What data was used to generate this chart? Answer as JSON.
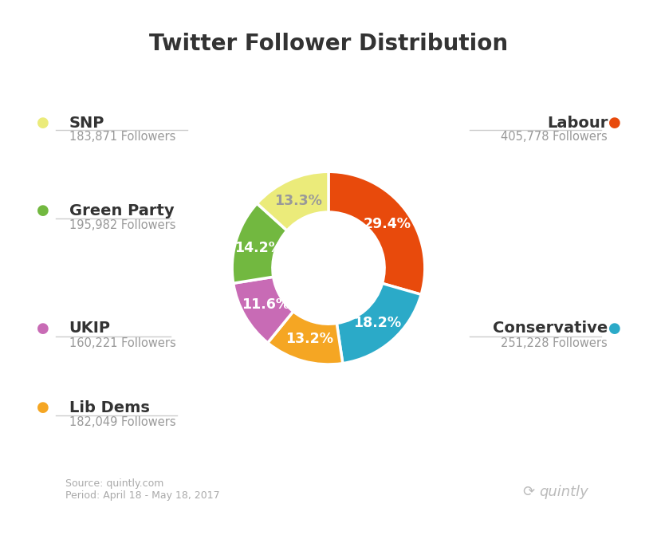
{
  "title": "Twitter Follower Distribution",
  "parties": [
    "Labour",
    "Conservative",
    "Lib Dems",
    "UKIP",
    "Green Party",
    "SNP"
  ],
  "values": [
    29.4,
    18.2,
    13.2,
    11.6,
    14.2,
    13.3
  ],
  "colors": [
    "#E84A0C",
    "#2BAAC8",
    "#F5A623",
    "#C86BB5",
    "#72B840",
    "#EBEB7A"
  ],
  "pct_labels": [
    "29.4%",
    "18.2%",
    "13.2%",
    "11.6%",
    "14.2%",
    "13.3%"
  ],
  "pct_text_colors": [
    "white",
    "white",
    "white",
    "white",
    "white",
    "#999999"
  ],
  "source_text": "Source: quintly.com\nPeriod: April 18 - May 18, 2017",
  "background_color": "#ffffff",
  "title_fontsize": 20,
  "label_name_fontsize": 14,
  "label_follower_fontsize": 10.5,
  "pct_fontsize": 12.5,
  "startangle": 90,
  "left_labels": [
    {
      "name": "SNP",
      "followers": "183,871 Followers",
      "color": "#EBEB7A"
    },
    {
      "name": "Green Party",
      "followers": "195,982 Followers",
      "color": "#72B840"
    },
    {
      "name": "UKIP",
      "followers": "160,221 Followers",
      "color": "#C86BB5"
    },
    {
      "name": "Lib Dems",
      "followers": "182,049 Followers",
      "color": "#F5A623"
    }
  ],
  "right_labels": [
    {
      "name": "Labour",
      "followers": "405,778 Followers",
      "color": "#E84A0C"
    },
    {
      "name": "Conservative",
      "followers": "251,228 Followers",
      "color": "#2BAAC8"
    }
  ]
}
